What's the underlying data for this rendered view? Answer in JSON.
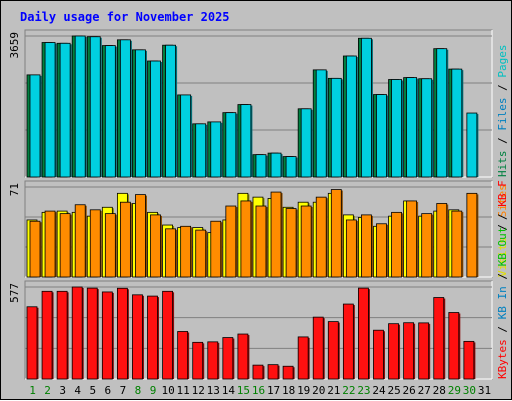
{
  "chart_data": {
    "type": "bar",
    "title": "Daily usage for November 2025",
    "categories": [
      "1",
      "2",
      "3",
      "4",
      "5",
      "6",
      "7",
      "8",
      "9",
      "10",
      "11",
      "12",
      "13",
      "14",
      "15",
      "16",
      "17",
      "18",
      "19",
      "20",
      "21",
      "22",
      "23",
      "24",
      "25",
      "26",
      "27",
      "28",
      "29",
      "30",
      "31"
    ],
    "weekend_days": [
      "1",
      "2",
      "8",
      "9",
      "15",
      "16",
      "22",
      "23",
      "29",
      "30"
    ],
    "panels": [
      {
        "id": "hits-panel",
        "max_label": "3659",
        "ymax": 3659,
        "grid": true,
        "side_labels": [
          {
            "text": "Hits",
            "color": "#008040"
          },
          {
            "text": " / ",
            "color": "#000000"
          },
          {
            "text": "Files",
            "color": "#0080c0"
          },
          {
            "text": " / ",
            "color": "#000000"
          },
          {
            "text": "Pages",
            "color": "#00c0c0"
          }
        ],
        "series": [
          {
            "name": "Hits",
            "color": "#008040",
            "values": [
              2650,
              3490,
              3470,
              3659,
              3640,
              3410,
              3560,
              3300,
              3010,
              3420,
              2130,
              1380,
              1430,
              1670,
              1880,
              580,
              620,
              530,
              1770,
              2780,
              2560,
              3140,
              3600,
              2140,
              2530,
              2580,
              2550,
              3330,
              2800,
              0,
              0
            ]
          },
          {
            "name": "Files",
            "color": "#00d0e0",
            "values": [
              2650,
              3490,
              3470,
              3659,
              3640,
              3410,
              3560,
              3300,
              3010,
              3420,
              2130,
              1380,
              1430,
              1670,
              1880,
              580,
              620,
              530,
              1770,
              2780,
              2560,
              3140,
              3600,
              2140,
              2530,
              2580,
              2550,
              3330,
              2800,
              1660,
              0
            ]
          }
        ]
      },
      {
        "id": "visits-panel",
        "max_label": "71",
        "ymax": 71,
        "grid": true,
        "side_labels": [
          {
            "text": "Visits",
            "color": "#e0e000"
          },
          {
            "text": " / ",
            "color": "#000000"
          },
          {
            "text": "Sites",
            "color": "#ff8000"
          }
        ],
        "series": [
          {
            "name": "Visits",
            "color": "#ffff00",
            "values": [
              45,
              51,
              52,
              51,
              48,
              55,
              66,
              58,
              51,
              41,
              39,
              39,
              35,
              45,
              66,
              63,
              62,
              55,
              59,
              59,
              66,
              49,
              47,
              40,
              48,
              60,
              48,
              52,
              53,
              0,
              0
            ]
          },
          {
            "name": "Sites",
            "color": "#ff8c00",
            "values": [
              44,
              52,
              50,
              57,
              53,
              50,
              59,
              65,
              49,
              38,
              40,
              37,
              44,
              56,
              60,
              56,
              67,
              54,
              56,
              63,
              69,
              45,
              49,
              42,
              51,
              60,
              50,
              58,
              52,
              66,
              0
            ]
          }
        ]
      },
      {
        "id": "kbytes-panel",
        "max_label": "577",
        "ymax": 577,
        "grid": true,
        "side_labels": [
          {
            "text": "KBytes",
            "color": "#ff0000"
          },
          {
            "text": " / ",
            "color": "#000000"
          },
          {
            "text": "KB In",
            "color": "#0080c0"
          },
          {
            "text": " / ",
            "color": "#000000"
          },
          {
            "text": "KB Out",
            "color": "#00c000"
          },
          {
            "text": " / ",
            "color": "#000000"
          },
          {
            "text": "KB F",
            "color": "#ff0000"
          }
        ],
        "series": [
          {
            "name": "KBytes",
            "color": "#ff1010",
            "values": [
              453,
              550,
              550,
              577,
              570,
              546,
              569,
              528,
              520,
              550,
              298,
              230,
              233,
              260,
              282,
              87,
              90,
              80,
              264,
              388,
              360,
              470,
              570,
              306,
              347,
              353,
              352,
              511,
              417,
              236,
              0
            ]
          }
        ]
      }
    ]
  },
  "colors": {
    "background": "#c0c0c0",
    "plot_background": "#c0c0c0",
    "grid": "#808080",
    "title": "#0000ff",
    "weekday_label": "#000000",
    "weekend_label": "#008000",
    "bar_outline": "#000000"
  }
}
